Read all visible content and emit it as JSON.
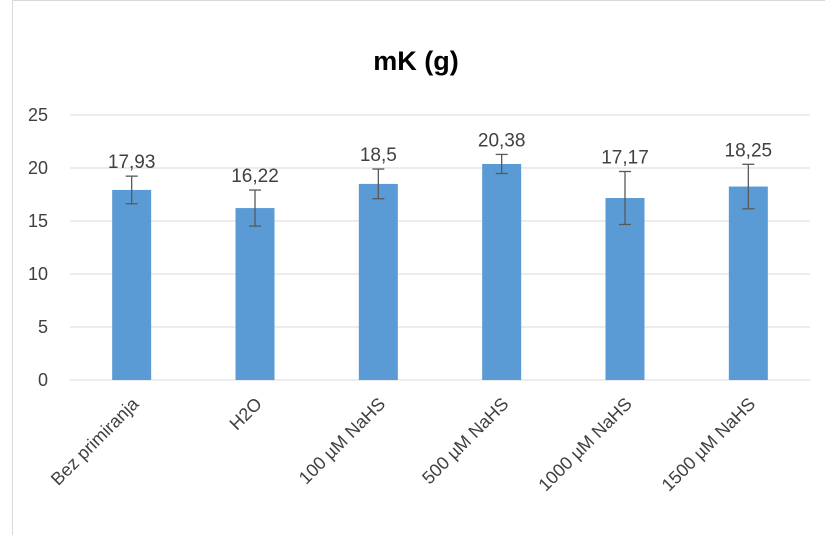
{
  "chart_data": {
    "type": "bar",
    "title": "mK (g)",
    "xlabel": "",
    "ylabel": "",
    "categories": [
      "Bez primiranja",
      "H2O",
      "100 µM NaHS",
      "500 µM NaHS",
      "1000 µM NaHS",
      "1500 µM NaHS"
    ],
    "values": [
      17.93,
      16.22,
      18.5,
      20.38,
      17.17,
      18.25
    ],
    "data_labels": [
      "17,93",
      "16,22",
      "18,5",
      "20,38",
      "17,17",
      "18,25"
    ],
    "error_bars": [
      1.3,
      1.7,
      1.4,
      0.9,
      2.5,
      2.1
    ],
    "ylim": [
      0,
      25
    ],
    "yticks": [
      "0",
      "5",
      "10",
      "15",
      "20",
      "25"
    ],
    "grid": true,
    "legend": "none",
    "colors": {
      "bar": "#5b9bd5",
      "grid": "#d9d9d9",
      "error": "#595959"
    }
  }
}
